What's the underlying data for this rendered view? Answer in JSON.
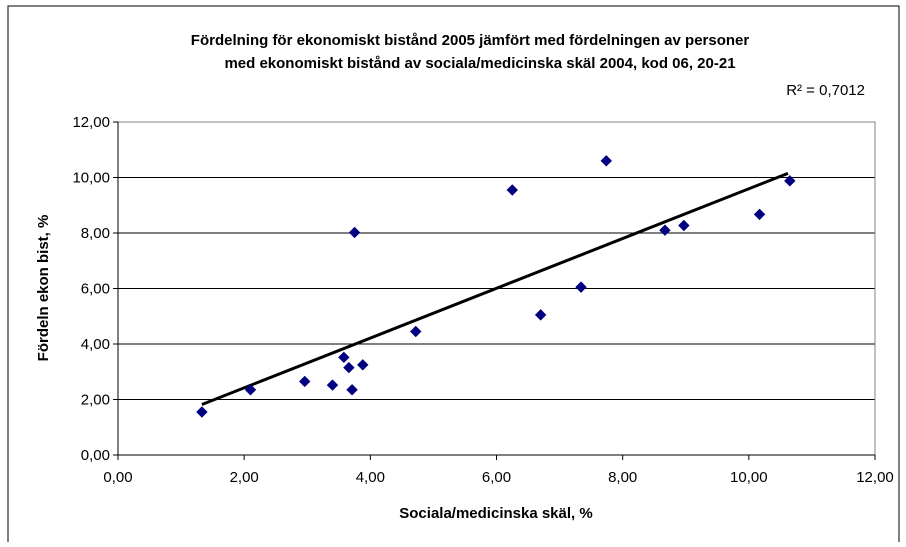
{
  "chart_data": {
    "type": "scatter",
    "title_line1": "Fördelning för ekonomiskt bistånd 2005 jämfört med fördelningen av personer",
    "title_line2": "med ekonomiskt bistånd av sociala/medicinska skäl 2004, kod 06, 20-21",
    "r2_label": "R² = 0,7012",
    "xlabel": "Sociala/medicinska skäl, %",
    "ylabel": "Fördeln ekon bist, %",
    "xlim": [
      0,
      12
    ],
    "ylim": [
      0,
      12
    ],
    "x_ticks": [
      "0,00",
      "2,00",
      "4,00",
      "6,00",
      "8,00",
      "10,00",
      "12,00"
    ],
    "y_ticks": [
      "0,00",
      "2,00",
      "4,00",
      "6,00",
      "8,00",
      "10,00",
      "12,00"
    ],
    "grid": "horizontal",
    "marker_color": "#000080",
    "trend_color": "#000000",
    "points": [
      {
        "x": 1.33,
        "y": 1.55
      },
      {
        "x": 2.1,
        "y": 2.35
      },
      {
        "x": 2.96,
        "y": 2.65
      },
      {
        "x": 3.4,
        "y": 2.52
      },
      {
        "x": 3.58,
        "y": 3.52
      },
      {
        "x": 3.66,
        "y": 3.15
      },
      {
        "x": 3.71,
        "y": 2.35
      },
      {
        "x": 3.75,
        "y": 8.02
      },
      {
        "x": 3.88,
        "y": 3.25
      },
      {
        "x": 4.72,
        "y": 4.45
      },
      {
        "x": 6.25,
        "y": 9.55
      },
      {
        "x": 6.7,
        "y": 5.05
      },
      {
        "x": 7.34,
        "y": 6.05
      },
      {
        "x": 7.74,
        "y": 10.6
      },
      {
        "x": 8.67,
        "y": 8.1
      },
      {
        "x": 8.97,
        "y": 8.27
      },
      {
        "x": 10.17,
        "y": 8.67
      },
      {
        "x": 10.65,
        "y": 9.88
      }
    ],
    "trendline": {
      "x": [
        1.33,
        10.62
      ],
      "y": [
        1.82,
        10.15
      ]
    }
  }
}
